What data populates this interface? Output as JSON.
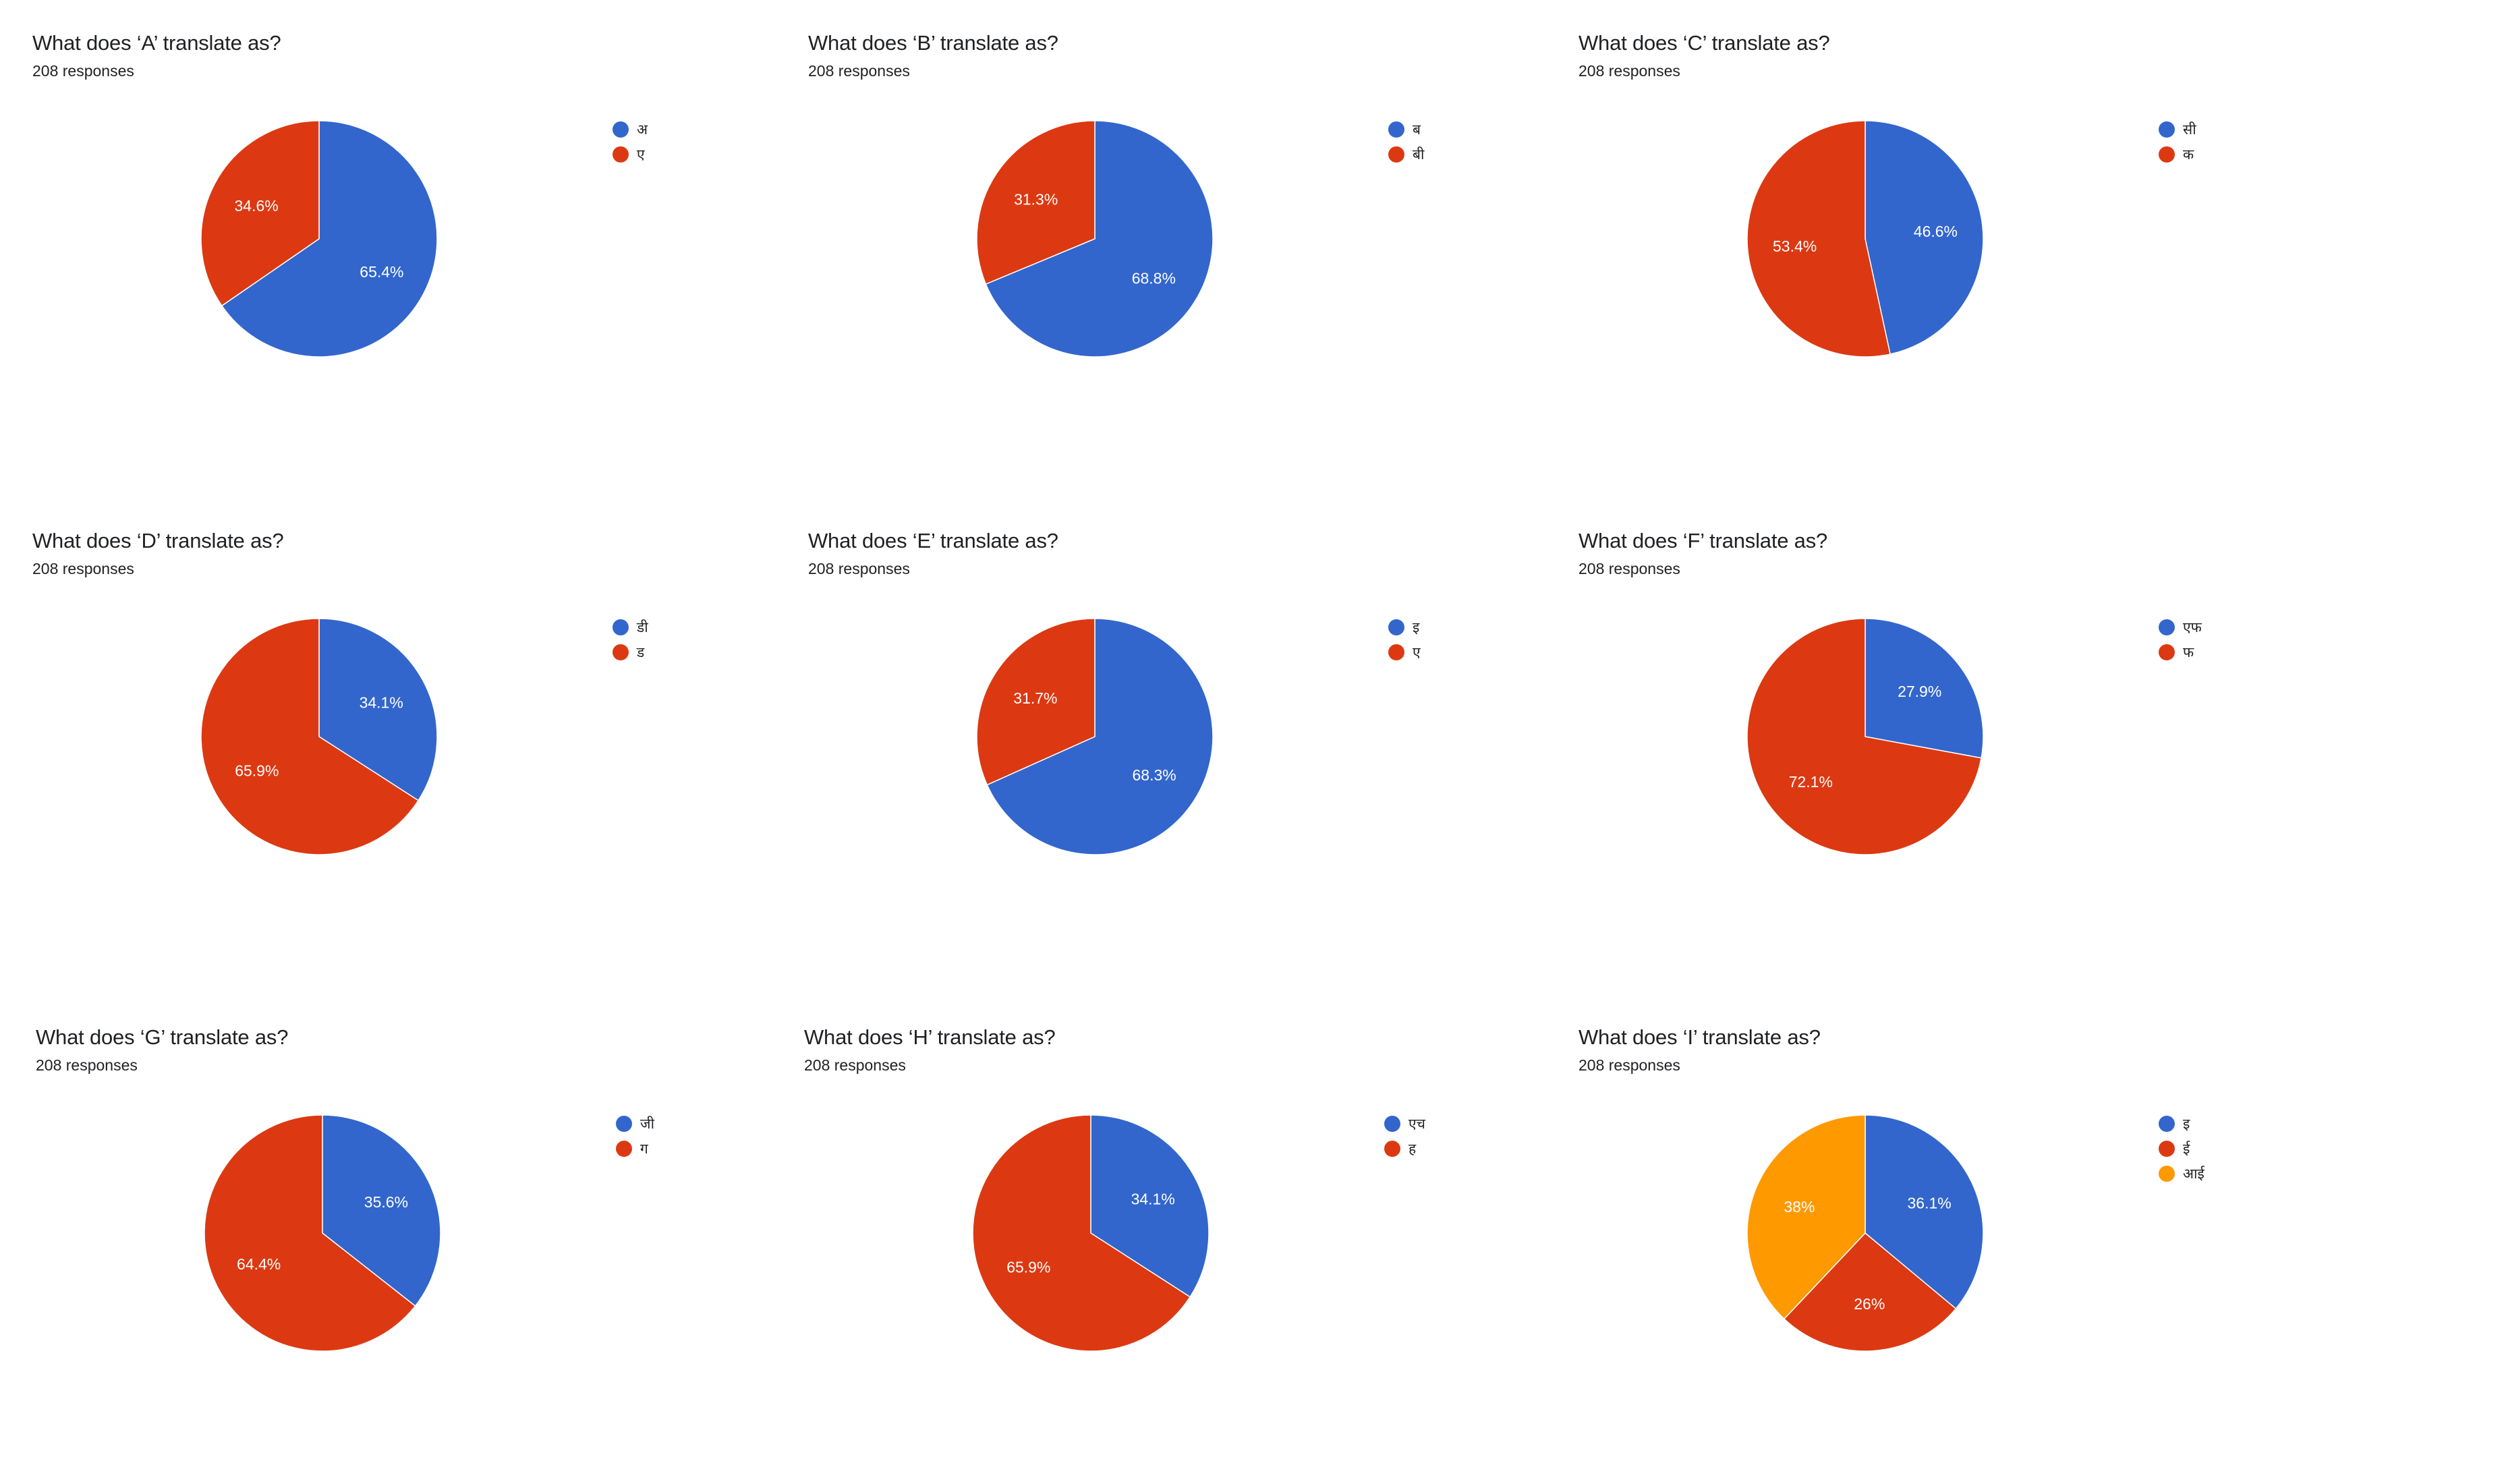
{
  "colors": {
    "blue": "#3366cc",
    "red": "#dc3912",
    "orange": "#ff9900"
  },
  "chart_data": [
    {
      "type": "pie",
      "title": "What does ‘A’ translate as?",
      "subtitle": "208 responses",
      "legend_position": "right",
      "slices": [
        {
          "label": "अ",
          "value": 65.4,
          "display": "65.4%",
          "color": "#3366cc"
        },
        {
          "label": "ए",
          "value": 34.6,
          "display": "34.6%",
          "color": "#dc3912"
        }
      ]
    },
    {
      "type": "pie",
      "title": "What does ‘B’ translate as?",
      "subtitle": "208 responses",
      "legend_position": "right",
      "slices": [
        {
          "label": "ब",
          "value": 68.8,
          "display": "68.8%",
          "color": "#3366cc"
        },
        {
          "label": "बी",
          "value": 31.3,
          "display": "31.3%",
          "color": "#dc3912"
        }
      ]
    },
    {
      "type": "pie",
      "title": "What does ‘C’ translate as?",
      "subtitle": "208 responses",
      "legend_position": "right",
      "slices": [
        {
          "label": "सी",
          "value": 46.6,
          "display": "46.6%",
          "color": "#3366cc"
        },
        {
          "label": "क",
          "value": 53.4,
          "display": "53.4%",
          "color": "#dc3912"
        }
      ]
    },
    {
      "type": "pie",
      "title": "What does ‘D’ translate as?",
      "subtitle": "208 responses",
      "legend_position": "right",
      "slices": [
        {
          "label": "डी",
          "value": 34.1,
          "display": "34.1%",
          "color": "#3366cc"
        },
        {
          "label": "ड",
          "value": 65.9,
          "display": "65.9%",
          "color": "#dc3912"
        }
      ]
    },
    {
      "type": "pie",
      "title": "What does ‘E’ translate as?",
      "subtitle": "208 responses",
      "legend_position": "right",
      "slices": [
        {
          "label": "इ",
          "value": 68.3,
          "display": "68.3%",
          "color": "#3366cc"
        },
        {
          "label": "ए",
          "value": 31.7,
          "display": "31.7%",
          "color": "#dc3912"
        }
      ]
    },
    {
      "type": "pie",
      "title": "What does ‘F’ translate as?",
      "subtitle": "208 responses",
      "legend_position": "right",
      "slices": [
        {
          "label": "एफ",
          "value": 27.9,
          "display": "27.9%",
          "color": "#3366cc"
        },
        {
          "label": "फ",
          "value": 72.1,
          "display": "72.1%",
          "color": "#dc3912"
        }
      ]
    },
    {
      "type": "pie",
      "title": "What does ‘G’ translate as?",
      "subtitle": "208 responses",
      "legend_position": "right",
      "slices": [
        {
          "label": "जी",
          "value": 35.6,
          "display": "35.6%",
          "color": "#3366cc"
        },
        {
          "label": "ग",
          "value": 64.4,
          "display": "64.4%",
          "color": "#dc3912"
        }
      ]
    },
    {
      "type": "pie",
      "title": "What does ‘H’ translate as?",
      "subtitle": "208 responses",
      "legend_position": "right",
      "slices": [
        {
          "label": "एच",
          "value": 34.1,
          "display": "34.1%",
          "color": "#3366cc"
        },
        {
          "label": "ह",
          "value": 65.9,
          "display": "65.9%",
          "color": "#dc3912"
        }
      ]
    },
    {
      "type": "pie",
      "title": "What does ‘I’ translate as?",
      "subtitle": "208 responses",
      "legend_position": "right",
      "slices": [
        {
          "label": "इ",
          "value": 36.1,
          "display": "36.1%",
          "color": "#3366cc"
        },
        {
          "label": "ई",
          "value": 26,
          "display": "26%",
          "color": "#dc3912"
        },
        {
          "label": "आई",
          "value": 38,
          "display": "38%",
          "color": "#ff9900"
        }
      ]
    }
  ]
}
